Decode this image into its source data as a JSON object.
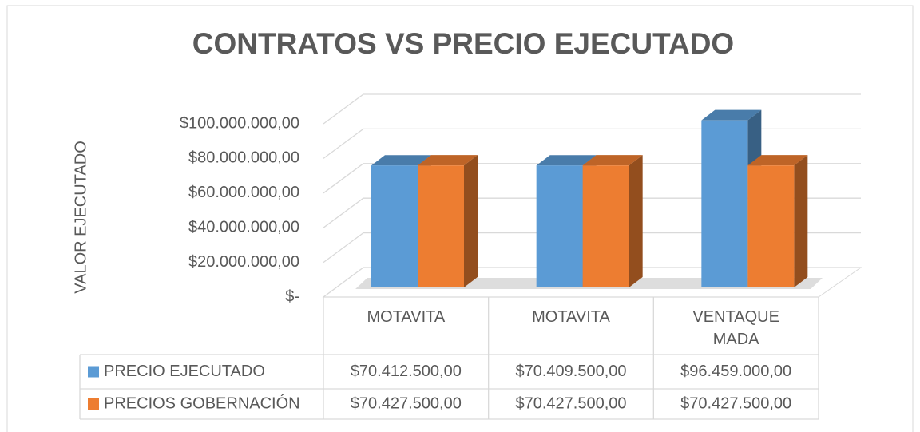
{
  "chart_data": {
    "type": "bar3d",
    "title": "CONTRATOS VS PRECIO EJECUTADO",
    "y_label": "VALOR EJECUTADO",
    "categories": [
      "MOTAVITA",
      "MOTAVITA",
      "VENTAQUE MADA"
    ],
    "series": [
      {
        "name": "PRECIO EJECUTADO",
        "color": "#5b9bd5",
        "values": [
          70412500,
          70409500,
          96459000
        ],
        "value_labels": [
          "$70.412.500,00",
          "$70.409.500,00",
          "$96.459.000,00"
        ]
      },
      {
        "name": "PRECIOS GOBERNACIÓN",
        "color": "#ed7d31",
        "values": [
          70427500,
          70427500,
          70427500
        ],
        "value_labels": [
          "$70.427.500,00",
          "$70.427.500,00",
          "$70.427.500,00"
        ]
      }
    ],
    "ylim": [
      0,
      100000000
    ],
    "yticks": [
      {
        "value": 0,
        "label": "$-"
      },
      {
        "value": 20000000,
        "label": "$20.000.000,00"
      },
      {
        "value": 40000000,
        "label": "$40.000.000,00"
      },
      {
        "value": 60000000,
        "label": "$60.000.000,00"
      },
      {
        "value": 80000000,
        "label": "$80.000.000,00"
      },
      {
        "value": 100000000,
        "label": "$100.000.000,00"
      }
    ],
    "grid": true,
    "data_table": true
  }
}
